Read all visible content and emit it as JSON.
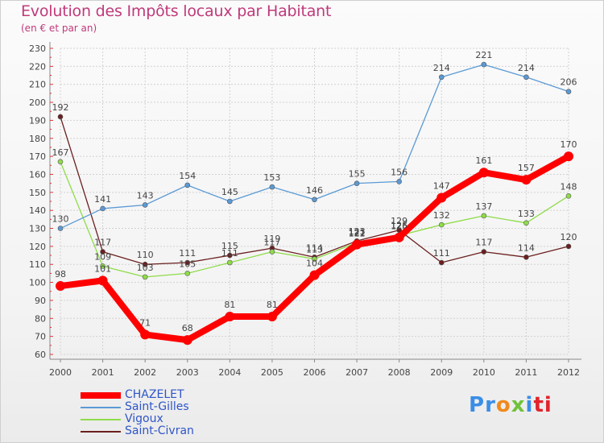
{
  "chart_data": {
    "type": "line",
    "title": "Evolution des Impôts locaux par Habitant",
    "subtitle": "(en € et par an)",
    "categories": [
      "2000",
      "2001",
      "2002",
      "2003",
      "2004",
      "2005",
      "2006",
      "2007",
      "2008",
      "2009",
      "2010",
      "2011",
      "2012"
    ],
    "ylim": [
      60,
      230
    ],
    "yticks": [
      "60",
      "70",
      "80",
      "90",
      "100",
      "110",
      "120",
      "130",
      "140",
      "150",
      "160",
      "170",
      "180",
      "190",
      "200",
      "210",
      "220",
      "230"
    ],
    "grid": true,
    "legend_position": "bottom-left",
    "series": [
      {
        "name": "Saint-Civran",
        "color": "#6b1f1f",
        "values": [
          192,
          117,
          110,
          111,
          115,
          119,
          114,
          123,
          129,
          111,
          117,
          114,
          120
        ],
        "labels": [
          "192",
          "117",
          "110",
          "111",
          "115",
          "119",
          "114",
          "123",
          "129",
          "111",
          "117",
          "114",
          "120"
        ]
      },
      {
        "name": "Vigoux",
        "color": "#8fdc4a",
        "values": [
          167,
          109,
          103,
          105,
          111,
          117,
          113,
          122,
          126,
          132,
          137,
          133,
          148
        ],
        "labels": [
          "167",
          "109",
          "103",
          "105",
          "111",
          "117",
          "113",
          "122",
          "126",
          "132",
          "137",
          "133",
          "148"
        ]
      },
      {
        "name": "Saint-Gilles",
        "color": "#5b9ad5",
        "values": [
          130,
          141,
          143,
          154,
          145,
          153,
          146,
          155,
          156,
          214,
          221,
          214,
          206
        ],
        "labels": [
          "130",
          "141",
          "143",
          "154",
          "145",
          "153",
          "146",
          "155",
          "156",
          "214",
          "221",
          "214",
          "206"
        ]
      },
      {
        "name": "CHAZELET",
        "color": "#ff0000",
        "values": [
          98,
          101,
          71,
          68,
          81,
          81,
          104,
          121,
          125,
          147,
          161,
          157,
          170
        ],
        "labels": [
          "98",
          "101",
          "71",
          "68",
          "81",
          "81",
          "104",
          "121",
          "125",
          "147",
          "161",
          "157",
          "170"
        ]
      }
    ]
  },
  "legend": [
    {
      "name": "CHAZELET",
      "color": "#ff0000"
    },
    {
      "name": "Saint-Gilles",
      "color": "#5b9ad5"
    },
    {
      "name": "Vigoux",
      "color": "#8fdc4a"
    },
    {
      "name": "Saint-Civran",
      "color": "#6b1f1f"
    }
  ],
  "logo": {
    "text": "Proxiti",
    "letters": [
      "P",
      "r",
      "o",
      "x",
      "i",
      "t",
      "i"
    ],
    "colors": [
      "#3a8ee6",
      "#3a8ee6",
      "#f08a1c",
      "#6fc23a",
      "#3a8ee6",
      "#e0242c",
      "#e0242c"
    ]
  }
}
